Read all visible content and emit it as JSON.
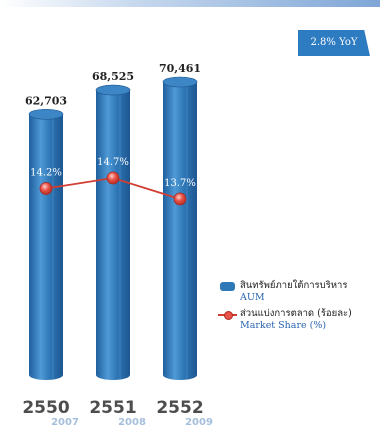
{
  "badge": {
    "label": "2.8% YoY"
  },
  "legend": {
    "bar_thai": "สินทรัพย์ภายใต้การบริหาร",
    "bar_eng": "AUM",
    "line_thai": "ส่วนแบ่งการตลาด (ร้อยละ)",
    "line_eng": "Market Share (%)"
  },
  "chart_data": {
    "type": "bar",
    "categories": [
      "2550",
      "2551",
      "2552"
    ],
    "sub_categories": [
      "2007",
      "2008",
      "2009"
    ],
    "series": [
      {
        "values": [
          62703,
          68525,
          70461
        ],
        "labels": [
          "62,703",
          "68,525",
          "70,461"
        ]
      },
      {
        "values": [
          14.2,
          14.7,
          13.7
        ],
        "labels": [
          "14.2%",
          "14.7%",
          "13.7%"
        ]
      }
    ],
    "legend_position": "right",
    "grid": false,
    "colors": {
      "bar": "#2f78b8",
      "line": "#d23d32"
    }
  }
}
